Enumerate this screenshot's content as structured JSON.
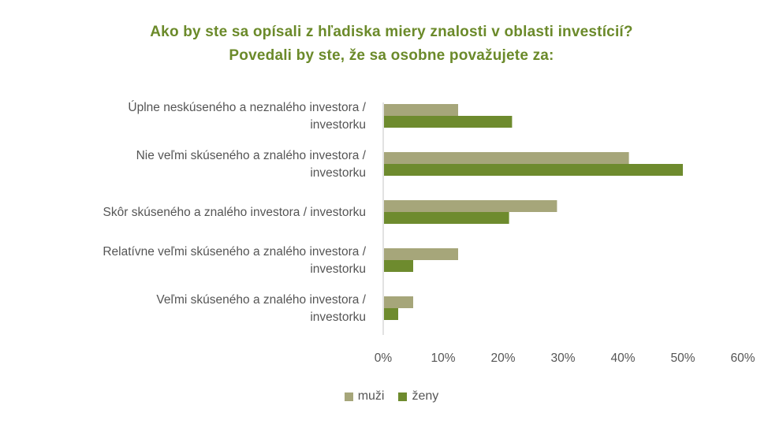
{
  "chart_data": {
    "type": "bar",
    "orientation": "horizontal",
    "title": "Ako by ste sa opísali z hľadiska miery znalosti v oblasti investícií?",
    "subtitle": "Povedali by ste, že sa osobne považujete za:",
    "categories": [
      [
        "Úplne neskúseného a neznalého investora /",
        "investorku"
      ],
      [
        "Nie veľmi skúseného a znalého investora /",
        "investorku"
      ],
      [
        "Skôr skúseného a znalého investora / investorku"
      ],
      [
        "Relatívne veľmi skúseného a znalého investora /",
        "investorku"
      ],
      [
        "Veľmi skúseného a znalého investora /",
        "investorku"
      ]
    ],
    "series": [
      {
        "name": "muži",
        "color": "#a6a67a",
        "values": [
          12.5,
          41,
          29,
          12.5,
          5
        ]
      },
      {
        "name": "ženy",
        "color": "#6e8b2e",
        "values": [
          21.5,
          50,
          21,
          5,
          2.5
        ]
      }
    ],
    "xlim": [
      0,
      60
    ],
    "ticks": [
      0,
      10,
      20,
      30,
      40,
      50,
      60
    ],
    "tick_labels": [
      "0%",
      "10%",
      "20%",
      "30%",
      "40%",
      "50%",
      "60%"
    ],
    "legend_position": "bottom",
    "grid": false
  }
}
